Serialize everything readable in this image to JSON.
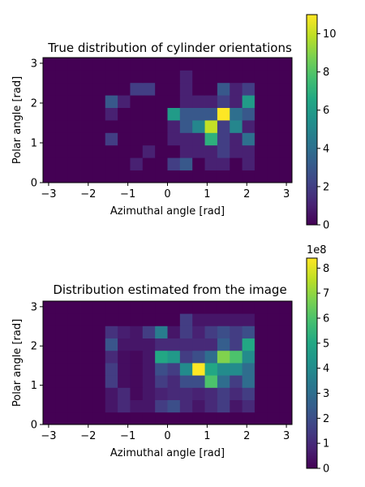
{
  "chart_data": [
    {
      "type": "heatmap",
      "title": "True distribution of cylinder orientations",
      "xlabel": "Azimuthal angle [rad]",
      "ylabel": "Polar angle [rad]",
      "xlim": [
        -3.14159,
        3.14159
      ],
      "ylim": [
        0,
        3.14159
      ],
      "xticks": [
        "−3",
        "−2",
        "−1",
        "0",
        "1",
        "2",
        "3"
      ],
      "xtick_values": [
        -3,
        -2,
        -1,
        0,
        1,
        2,
        3
      ],
      "yticks": [
        "0",
        "1",
        "2",
        "3"
      ],
      "ytick_values": [
        0,
        1,
        2,
        3
      ],
      "n_cols": 20,
      "n_rows": 10,
      "colormap": "viridis",
      "colorbar": {
        "min": 0,
        "max": 11,
        "ticks": [
          0,
          2,
          4,
          6,
          8,
          10
        ],
        "tick_labels": [
          "0",
          "2",
          "4",
          "6",
          "8",
          "10"
        ],
        "offset_label": ""
      },
      "grid": false,
      "rows_bottom_to_top": [
        [
          0,
          0,
          0,
          0,
          0,
          0,
          0,
          0,
          0,
          0,
          0,
          0,
          0,
          0,
          0,
          0,
          0,
          0,
          0,
          0
        ],
        [
          0,
          0,
          0,
          0,
          0,
          0,
          0,
          1,
          0,
          0,
          2,
          3,
          0,
          1,
          1,
          0,
          1,
          0,
          0,
          0
        ],
        [
          0,
          0,
          0,
          0,
          0,
          0,
          0,
          0,
          1,
          0,
          0,
          1,
          1,
          1,
          2,
          1,
          1,
          0,
          0,
          0
        ],
        [
          0,
          0,
          0,
          0,
          0,
          2,
          0,
          0,
          0,
          0,
          1,
          1,
          1,
          7,
          2,
          1,
          4,
          0,
          0,
          0
        ],
        [
          0,
          0,
          0,
          0,
          0,
          0,
          0,
          0,
          0,
          0,
          1,
          3,
          5,
          10,
          2,
          5,
          1,
          0,
          0,
          0
        ],
        [
          0,
          0,
          0,
          0,
          0,
          1,
          0,
          0,
          0,
          0,
          6,
          3,
          3,
          3,
          11,
          4,
          3,
          0,
          0,
          0
        ],
        [
          0,
          0,
          0,
          0,
          0,
          3,
          1,
          0,
          0,
          0,
          0,
          1,
          1,
          1,
          2,
          1,
          6,
          0,
          0,
          0
        ],
        [
          0,
          0,
          0,
          0,
          0,
          0,
          0,
          2,
          2,
          0,
          0,
          1,
          0,
          0,
          3,
          1,
          2,
          0,
          0,
          0
        ],
        [
          0,
          0,
          0,
          0,
          0,
          0,
          0,
          0,
          0,
          0,
          0,
          1,
          0,
          0,
          0,
          0,
          0,
          0,
          0,
          0
        ],
        [
          0,
          0,
          0,
          0,
          0,
          0,
          0,
          0,
          0,
          0,
          0,
          0,
          0,
          0,
          0,
          0,
          0,
          0,
          0,
          0
        ]
      ]
    },
    {
      "type": "heatmap",
      "title": "Distribution estimated from the image",
      "xlabel": "Azimuthal angle [rad]",
      "ylabel": "Polar angle [rad]",
      "xlim": [
        -3.14159,
        3.14159
      ],
      "ylim": [
        0,
        3.14159
      ],
      "xticks": [
        "−3",
        "−2",
        "−1",
        "0",
        "1",
        "2",
        "3"
      ],
      "xtick_values": [
        -3,
        -2,
        -1,
        0,
        1,
        2,
        3
      ],
      "yticks": [
        "0",
        "1",
        "2",
        "3"
      ],
      "ytick_values": [
        0,
        1,
        2,
        3
      ],
      "n_cols": 20,
      "n_rows": 10,
      "colormap": "viridis",
      "colorbar": {
        "min": 0,
        "max": 8.4,
        "ticks": [
          0,
          1,
          2,
          3,
          4,
          5,
          6,
          7,
          8
        ],
        "tick_labels": [
          "0",
          "1",
          "2",
          "3",
          "4",
          "5",
          "6",
          "7",
          "8"
        ],
        "offset_label": "1e8"
      },
      "grid": false,
      "rows_bottom_to_top": [
        [
          0,
          0,
          0,
          0,
          0,
          0,
          0,
          0,
          0,
          0,
          0,
          0,
          0,
          0,
          0,
          0,
          0,
          0,
          0,
          0
        ],
        [
          0,
          0,
          0,
          0,
          0,
          0.5,
          1,
          0.5,
          0.5,
          1.5,
          2,
          1,
          0.5,
          1,
          1.5,
          0.5,
          1,
          0,
          0,
          0
        ],
        [
          0,
          0,
          0,
          0,
          0,
          0.5,
          1,
          0.2,
          0.5,
          0.8,
          1,
          1,
          0.8,
          1,
          1.5,
          1,
          1.5,
          0,
          0,
          0
        ],
        [
          0,
          0,
          0,
          0,
          0,
          1.5,
          0.3,
          0.2,
          0.5,
          1.5,
          1,
          2,
          2,
          6,
          3,
          1.5,
          3,
          0,
          0,
          0
        ],
        [
          0,
          0,
          0,
          0,
          0,
          1.5,
          0.3,
          0.2,
          0.5,
          2,
          1.5,
          4,
          8.4,
          5,
          4,
          4,
          3,
          0,
          0,
          0
        ],
        [
          0,
          0,
          0,
          0,
          0,
          1,
          0.3,
          0.2,
          0.5,
          5,
          4.5,
          1.5,
          2,
          3,
          6.8,
          6,
          4,
          0,
          0,
          0
        ],
        [
          0,
          0,
          0,
          0,
          0,
          2.2,
          0.5,
          0.5,
          0.5,
          1,
          1,
          1,
          1,
          1,
          2.5,
          1.5,
          5,
          0,
          0,
          0
        ],
        [
          0,
          0,
          0,
          0,
          0,
          1.2,
          0.7,
          0.5,
          1.5,
          3.5,
          0.5,
          1.5,
          0.8,
          1.5,
          2,
          1.5,
          2,
          0,
          0,
          0
        ],
        [
          0,
          0,
          0,
          0,
          0,
          0,
          0,
          0,
          0,
          0,
          0,
          1.5,
          0.5,
          0.5,
          0.5,
          0.5,
          0.5,
          0,
          0,
          0
        ],
        [
          0,
          0,
          0,
          0,
          0,
          0,
          0,
          0,
          0,
          0,
          0,
          0,
          0,
          0,
          0,
          0,
          0,
          0,
          0,
          0
        ]
      ]
    }
  ]
}
